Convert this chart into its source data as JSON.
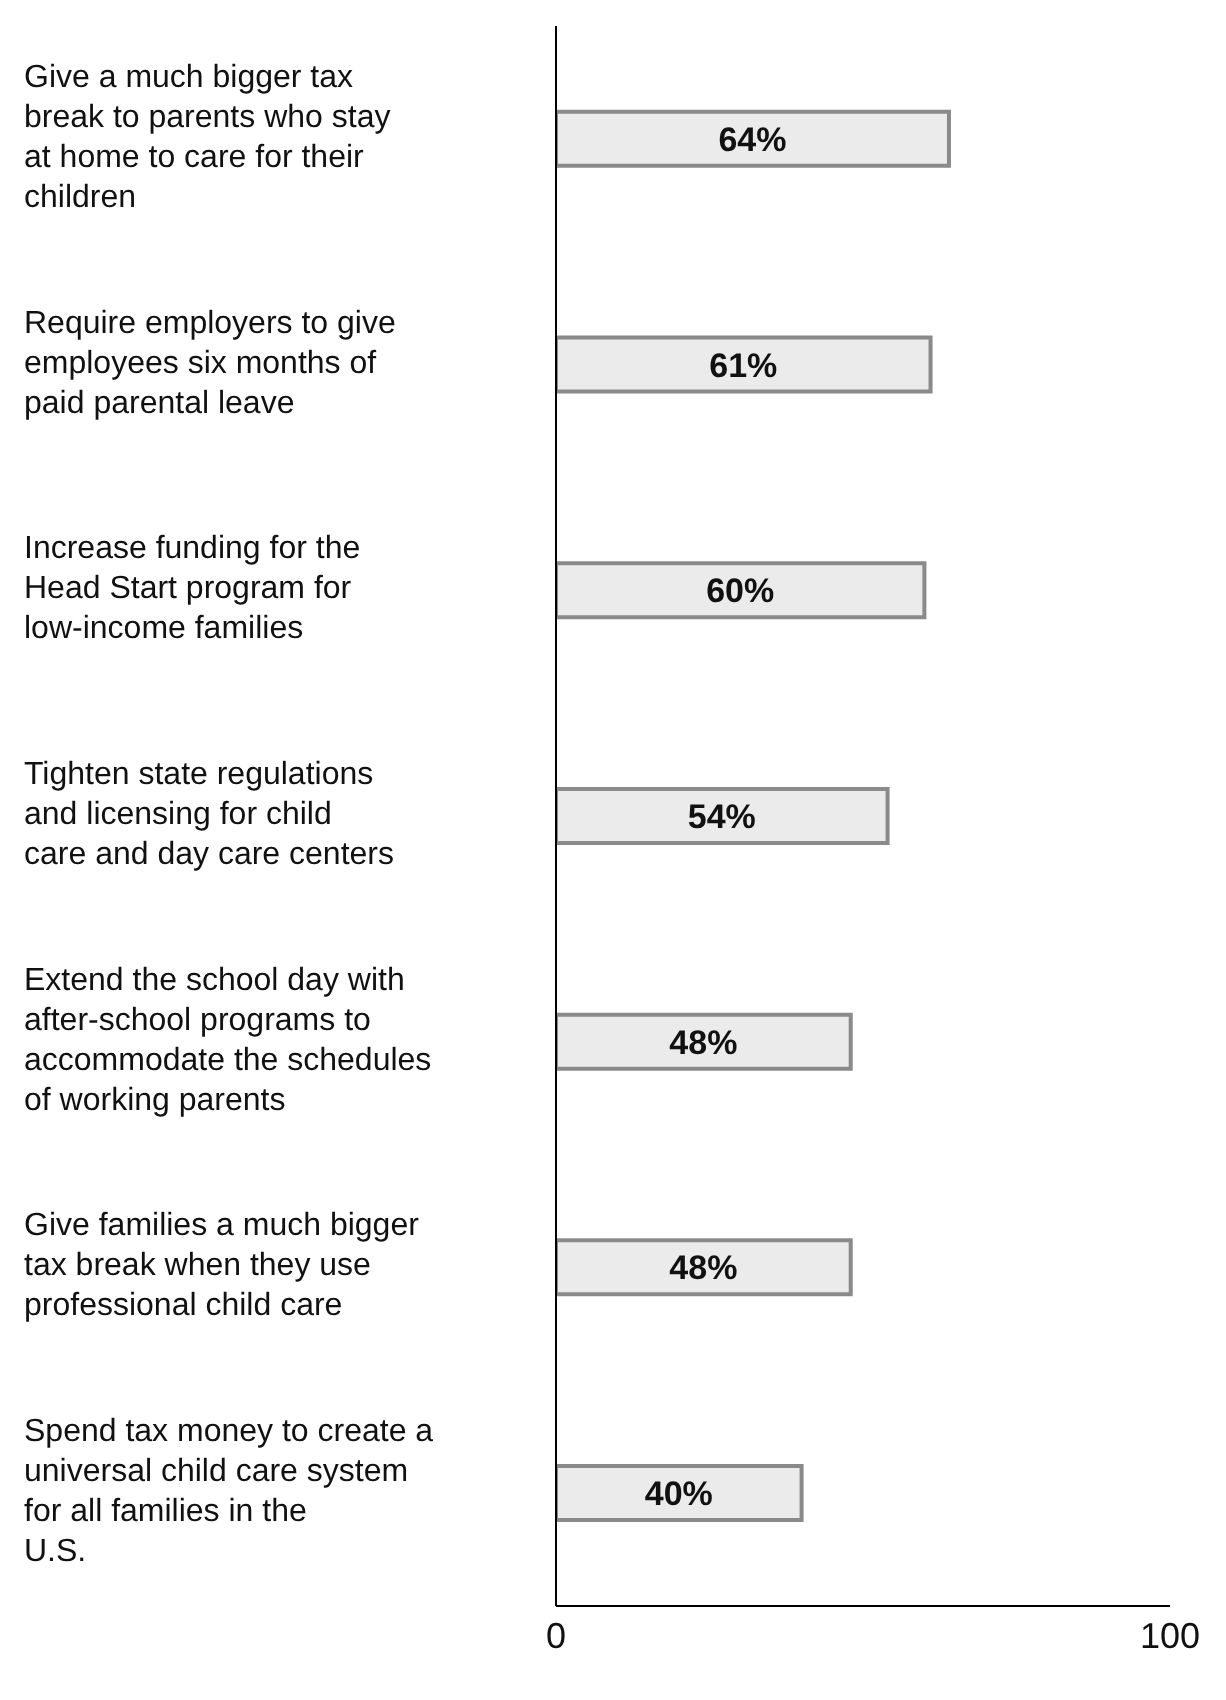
{
  "chart_data": {
    "type": "bar",
    "orientation": "horizontal",
    "categories": [
      "Give a much bigger tax break to parents who stay at home to care for their children",
      "Require employers to give employees six months of paid parental leave",
      "Increase funding for the Head Start program for low-income families",
      "Tighten state regulations and licensing for child care and day care centers",
      "Extend the school day with after-school programs to accommodate the schedules of working parents",
      "Give families a much bigger tax break when they use professional child care",
      "Spend tax money to create a universal child care system for all families in the U.S."
    ],
    "values": [
      64,
      61,
      60,
      54,
      48,
      48,
      40
    ],
    "value_labels": [
      "64%",
      "61%",
      "60%",
      "54%",
      "48%",
      "48%",
      "40%"
    ],
    "color": "#ebebeb",
    "xlim": [
      0,
      100
    ],
    "xticks": [
      0,
      100
    ]
  }
}
